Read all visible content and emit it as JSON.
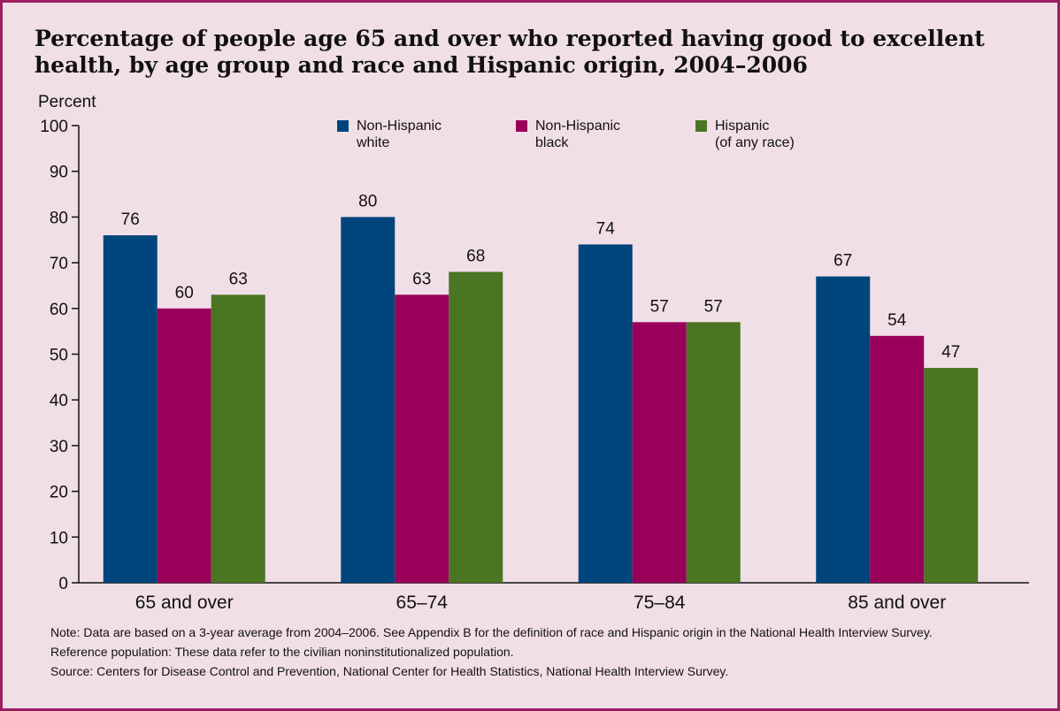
{
  "chart_data": {
    "type": "bar",
    "title": "Percentage of people age 65 and over who reported having good to excellent health, by age group and race and Hispanic origin, 2004–2006",
    "ylabel": "Percent",
    "xlabel": "",
    "ylim": [
      0,
      100
    ],
    "yticks": [
      "0",
      "10",
      "20",
      "30",
      "40",
      "50",
      "60",
      "70",
      "80",
      "90",
      "100"
    ],
    "categories": [
      "65 and over",
      "65–74",
      "75–84",
      "85 and over"
    ],
    "series": [
      {
        "name": "Non-Hispanic white",
        "legend_lines": [
          "Non-Hispanic",
          "white"
        ],
        "color": "#00457c",
        "values": [
          76,
          80,
          74,
          67
        ]
      },
      {
        "name": "Non-Hispanic black",
        "legend_lines": [
          "Non-Hispanic",
          "black"
        ],
        "color": "#99005a",
        "values": [
          60,
          63,
          57,
          54
        ]
      },
      {
        "name": "Hispanic (of any race)",
        "legend_lines": [
          "Hispanic",
          "(of any race)"
        ],
        "color": "#4a7523",
        "values": [
          63,
          68,
          57,
          47
        ]
      }
    ],
    "legend_position": "top",
    "grid": false
  },
  "notes": {
    "note": "Note: Data are based on a 3-year average from 2004–2006. See Appendix B for the definition of race and Hispanic origin in the National Health Interview Survey.",
    "reference": "Reference population: These data refer to the civilian noninstitutionalized population.",
    "source": "Source: Centers for Disease Control and Prevention, National Center for Health Statistics, National Health Interview Survey."
  }
}
